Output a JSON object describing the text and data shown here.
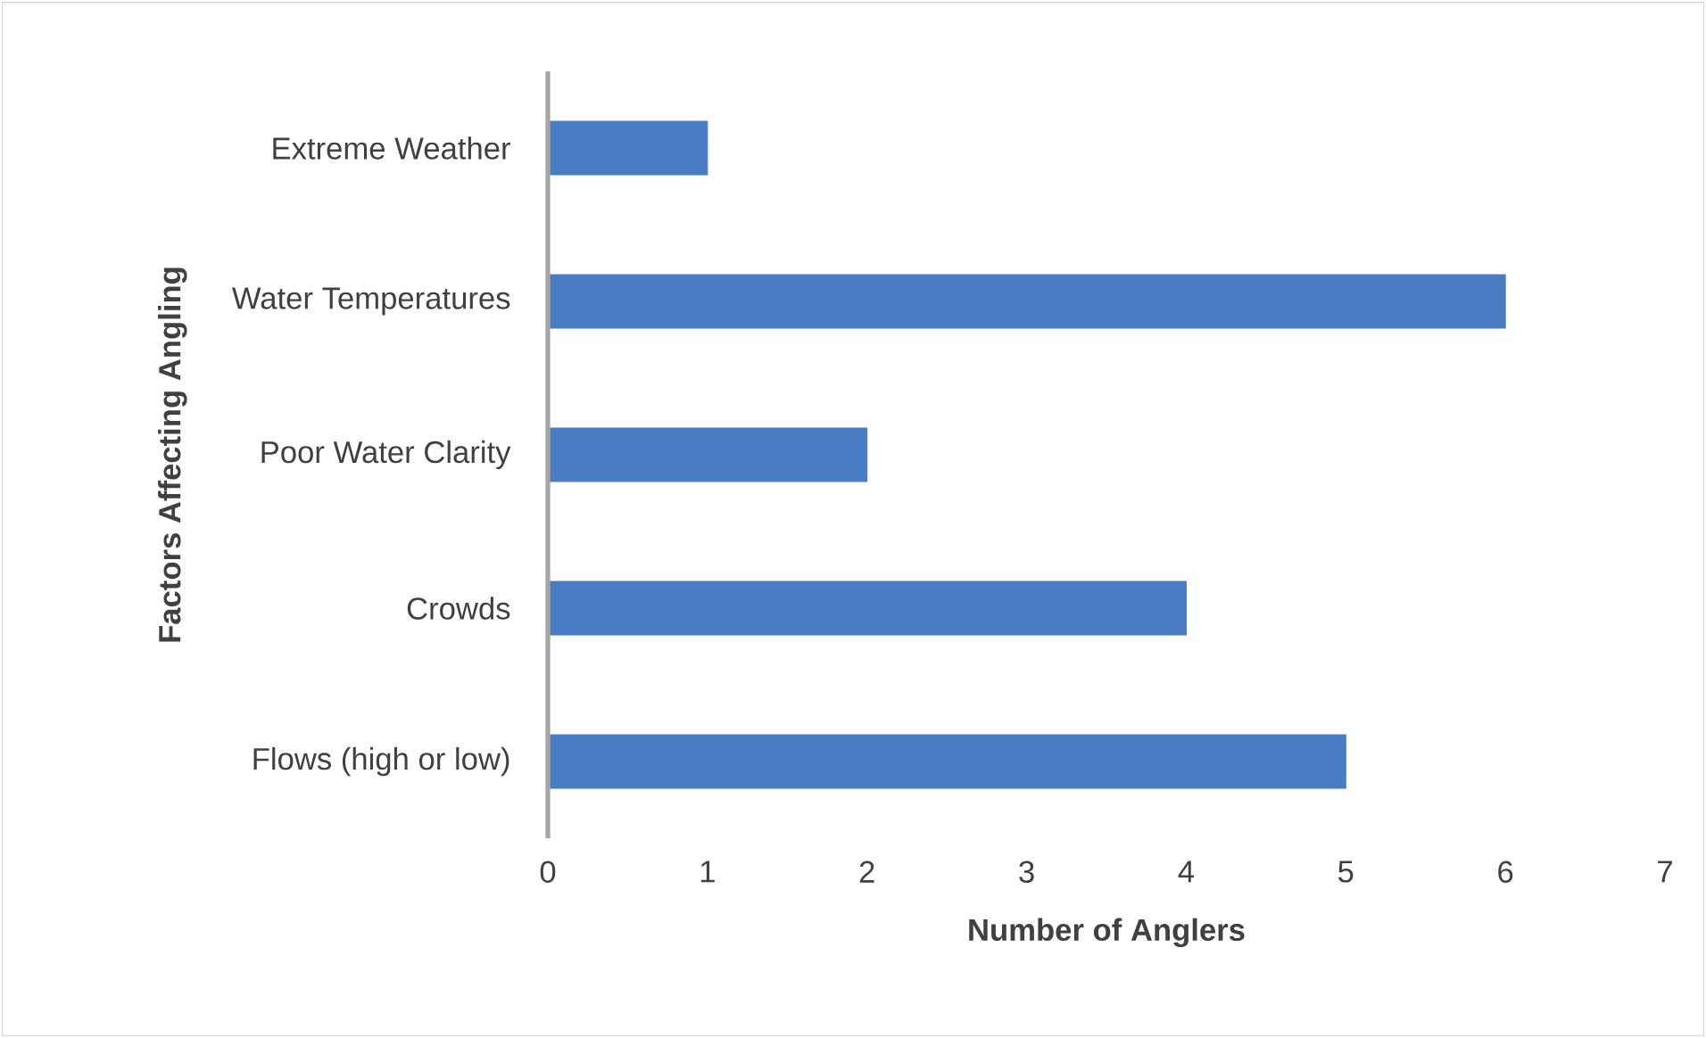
{
  "chart_data": {
    "type": "bar",
    "orientation": "horizontal",
    "categories": [
      "Extreme Weather",
      "Water Temperatures",
      "Poor Water Clarity",
      "Crowds",
      "Flows (high or low)"
    ],
    "values": [
      1,
      6,
      2,
      4,
      5
    ],
    "color": "#4a7cc4",
    "xlabel": "Number of Anglers",
    "ylabel": "Factors Affecting Angling",
    "xlim": [
      0,
      7
    ],
    "xticks": [
      0,
      1,
      2,
      3,
      4,
      5,
      6,
      7
    ],
    "grid": false
  }
}
